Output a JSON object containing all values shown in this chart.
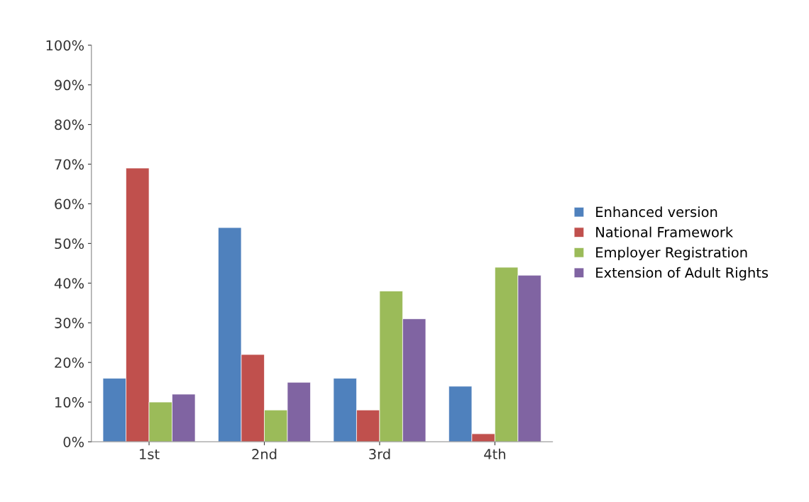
{
  "chart_data": {
    "type": "bar",
    "categories": [
      "1st",
      "2nd",
      "3rd",
      "4th"
    ],
    "series": [
      {
        "name": "Enhanced version",
        "color": "#4f81bd",
        "values": [
          16,
          54,
          16,
          14
        ]
      },
      {
        "name": "National Framework",
        "color": "#c0504d",
        "values": [
          69,
          22,
          8,
          2
        ]
      },
      {
        "name": "Employer Registration",
        "color": "#9bbb59",
        "values": [
          10,
          8,
          38,
          44
        ]
      },
      {
        "name": "Extension of Adult Rights",
        "color": "#8064a2",
        "values": [
          12,
          15,
          31,
          42
        ]
      }
    ],
    "ylim": [
      0,
      100
    ],
    "yticks": [
      {
        "value": 0,
        "label": "0%"
      },
      {
        "value": 10,
        "label": "10%"
      },
      {
        "value": 20,
        "label": "20%"
      },
      {
        "value": 30,
        "label": "30%"
      },
      {
        "value": 40,
        "label": "40%"
      },
      {
        "value": 50,
        "label": "50%"
      },
      {
        "value": 60,
        "label": "60%"
      },
      {
        "value": 70,
        "label": "70%"
      },
      {
        "value": 80,
        "label": "80%"
      },
      {
        "value": 90,
        "label": "90%"
      },
      {
        "value": 100,
        "label": "100%"
      }
    ],
    "grid": false,
    "legend": "right"
  }
}
